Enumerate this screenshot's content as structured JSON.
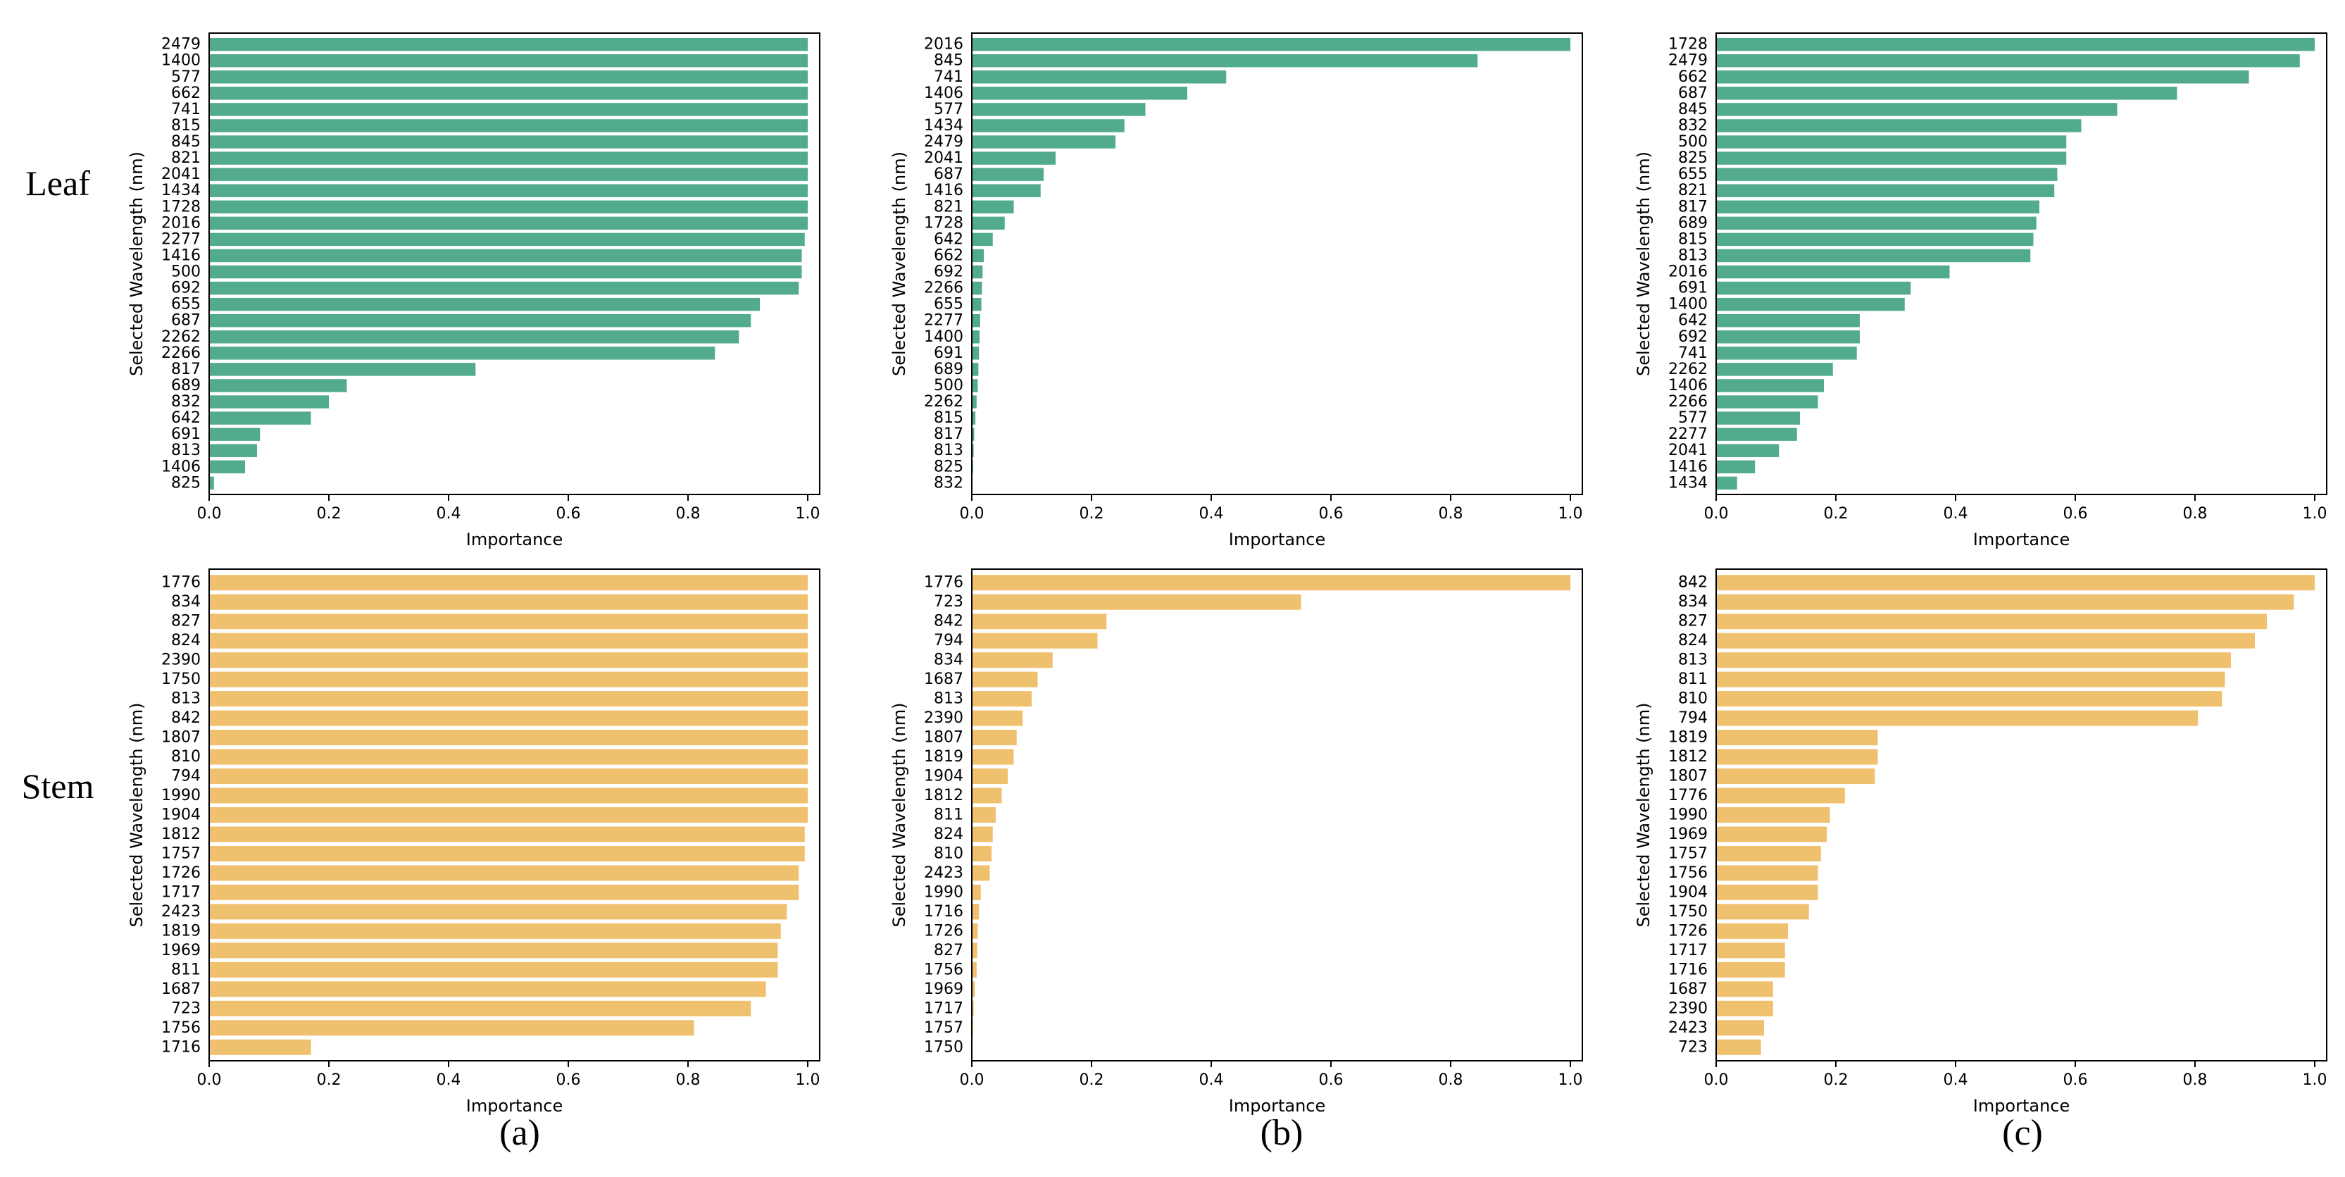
{
  "figure": {
    "row_labels": [
      "Leaf",
      "Stem"
    ],
    "panel_labels": [
      "(a)",
      "(b)",
      "(c)"
    ],
    "colors": {
      "leaf": "#52ab8e",
      "stem": "#efc06d"
    }
  },
  "chart_data": [
    {
      "type": "bar",
      "orientation": "horizontal",
      "row": "Leaf",
      "panel": "(a)",
      "xlabel": "Importance",
      "ylabel": "Selected Wavelength (nm)",
      "xlim": [
        0,
        1.02
      ],
      "xticks": [
        "0.0",
        "0.2",
        "0.4",
        "0.6",
        "0.8",
        "1.0"
      ],
      "categories": [
        "2479",
        "1400",
        "577",
        "662",
        "741",
        "815",
        "845",
        "821",
        "2041",
        "1434",
        "1728",
        "2016",
        "2277",
        "1416",
        "500",
        "692",
        "655",
        "687",
        "2262",
        "2266",
        "817",
        "689",
        "832",
        "642",
        "691",
        "813",
        "1406",
        "825"
      ],
      "values": [
        1.0,
        1.0,
        1.0,
        1.0,
        1.0,
        1.0,
        1.0,
        1.0,
        1.0,
        1.0,
        1.0,
        1.0,
        0.995,
        0.99,
        0.99,
        0.985,
        0.92,
        0.905,
        0.885,
        0.845,
        0.445,
        0.23,
        0.2,
        0.17,
        0.085,
        0.08,
        0.06,
        0.008
      ]
    },
    {
      "type": "bar",
      "orientation": "horizontal",
      "row": "Leaf",
      "panel": "(b)",
      "xlabel": "Importance",
      "ylabel": "Selected Wavelength (nm)",
      "xlim": [
        0,
        1.02
      ],
      "xticks": [
        "0.0",
        "0.2",
        "0.4",
        "0.6",
        "0.8",
        "1.0"
      ],
      "categories": [
        "2016",
        "845",
        "741",
        "1406",
        "577",
        "1434",
        "2479",
        "2041",
        "687",
        "1416",
        "821",
        "1728",
        "642",
        "662",
        "692",
        "2266",
        "655",
        "2277",
        "1400",
        "691",
        "689",
        "500",
        "2262",
        "815",
        "817",
        "813",
        "825",
        "832"
      ],
      "values": [
        1.0,
        0.845,
        0.425,
        0.36,
        0.29,
        0.255,
        0.24,
        0.14,
        0.12,
        0.115,
        0.07,
        0.055,
        0.035,
        0.02,
        0.018,
        0.017,
        0.016,
        0.014,
        0.013,
        0.012,
        0.011,
        0.01,
        0.008,
        0.006,
        0.004,
        0.003,
        0.002,
        0.001
      ]
    },
    {
      "type": "bar",
      "orientation": "horizontal",
      "row": "Leaf",
      "panel": "(c)",
      "xlabel": "Importance",
      "ylabel": "Selected Wavelength (nm)",
      "xlim": [
        0,
        1.02
      ],
      "xticks": [
        "0.0",
        "0.2",
        "0.4",
        "0.6",
        "0.8",
        "1.0"
      ],
      "categories": [
        "1728",
        "2479",
        "662",
        "687",
        "845",
        "832",
        "500",
        "825",
        "655",
        "821",
        "817",
        "689",
        "815",
        "813",
        "2016",
        "691",
        "1400",
        "642",
        "692",
        "741",
        "2262",
        "1406",
        "2266",
        "577",
        "2277",
        "2041",
        "1416",
        "1434"
      ],
      "values": [
        1.0,
        0.975,
        0.89,
        0.77,
        0.67,
        0.61,
        0.585,
        0.585,
        0.57,
        0.565,
        0.54,
        0.535,
        0.53,
        0.525,
        0.39,
        0.325,
        0.315,
        0.24,
        0.24,
        0.235,
        0.195,
        0.18,
        0.17,
        0.14,
        0.135,
        0.105,
        0.065,
        0.035
      ]
    },
    {
      "type": "bar",
      "orientation": "horizontal",
      "row": "Stem",
      "panel": "(a)",
      "xlabel": "Importance",
      "ylabel": "Selected Wavelength (nm)",
      "xlim": [
        0,
        1.02
      ],
      "xticks": [
        "0.0",
        "0.2",
        "0.4",
        "0.6",
        "0.8",
        "1.0"
      ],
      "categories": [
        "1776",
        "834",
        "827",
        "824",
        "2390",
        "1750",
        "813",
        "842",
        "1807",
        "810",
        "794",
        "1990",
        "1904",
        "1812",
        "1757",
        "1726",
        "1717",
        "2423",
        "1819",
        "1969",
        "811",
        "1687",
        "723",
        "1756",
        "1716"
      ],
      "values": [
        1.0,
        1.0,
        1.0,
        1.0,
        1.0,
        1.0,
        1.0,
        1.0,
        1.0,
        1.0,
        1.0,
        1.0,
        1.0,
        0.995,
        0.995,
        0.985,
        0.985,
        0.965,
        0.955,
        0.95,
        0.95,
        0.93,
        0.905,
        0.81,
        0.17
      ]
    },
    {
      "type": "bar",
      "orientation": "horizontal",
      "row": "Stem",
      "panel": "(b)",
      "xlabel": "Importance",
      "ylabel": "Selected Wavelength (nm)",
      "xlim": [
        0,
        1.02
      ],
      "xticks": [
        "0.0",
        "0.2",
        "0.4",
        "0.6",
        "0.8",
        "1.0"
      ],
      "categories": [
        "1776",
        "723",
        "842",
        "794",
        "834",
        "1687",
        "813",
        "2390",
        "1807",
        "1819",
        "1904",
        "1812",
        "811",
        "824",
        "810",
        "2423",
        "1990",
        "1716",
        "1726",
        "827",
        "1756",
        "1969",
        "1717",
        "1757",
        "1750"
      ],
      "values": [
        1.0,
        0.55,
        0.225,
        0.21,
        0.135,
        0.11,
        0.1,
        0.085,
        0.075,
        0.07,
        0.06,
        0.05,
        0.04,
        0.035,
        0.033,
        0.03,
        0.015,
        0.012,
        0.01,
        0.009,
        0.008,
        0.005,
        0.003,
        0.002,
        0.001
      ]
    },
    {
      "type": "bar",
      "orientation": "horizontal",
      "row": "Stem",
      "panel": "(c)",
      "xlabel": "Importance",
      "ylabel": "Selected Wavelength (nm)",
      "xlim": [
        0,
        1.02
      ],
      "xticks": [
        "0.0",
        "0.2",
        "0.4",
        "0.6",
        "0.8",
        "1.0"
      ],
      "categories": [
        "842",
        "834",
        "827",
        "824",
        "813",
        "811",
        "810",
        "794",
        "1819",
        "1812",
        "1807",
        "1776",
        "1990",
        "1969",
        "1757",
        "1756",
        "1904",
        "1750",
        "1726",
        "1717",
        "1716",
        "1687",
        "2390",
        "2423",
        "723"
      ],
      "values": [
        1.0,
        0.965,
        0.92,
        0.9,
        0.86,
        0.85,
        0.845,
        0.805,
        0.27,
        0.27,
        0.265,
        0.215,
        0.19,
        0.185,
        0.175,
        0.17,
        0.17,
        0.155,
        0.12,
        0.115,
        0.115,
        0.095,
        0.095,
        0.08,
        0.075
      ]
    }
  ]
}
